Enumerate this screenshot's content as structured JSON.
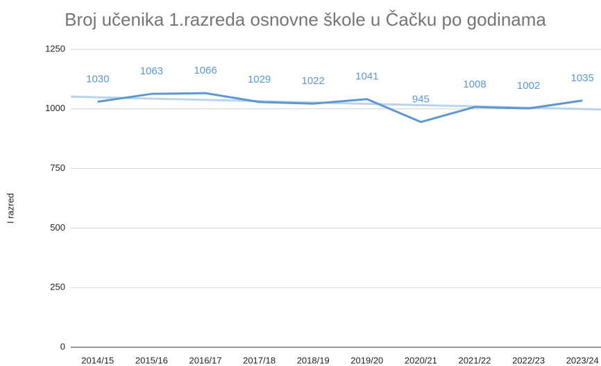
{
  "chart_data": {
    "type": "line",
    "title": "Broj učenika 1.razreda osnovne škole u Čačku po godinama",
    "y_label": "I razred",
    "categories": [
      "2014/15",
      "2015/16",
      "2016/17",
      "2017/18",
      "2018/19",
      "2019/20",
      "2020/21",
      "2021/22",
      "2022/23",
      "2023/24"
    ],
    "values": [
      1030,
      1063,
      1066,
      1029,
      1022,
      1041,
      945,
      1008,
      1002,
      1035
    ],
    "color": "#5e97cf",
    "trendline": true,
    "trendline_color": "#b9d4eb",
    "ylim": [
      0,
      1250
    ],
    "yticks": [
      0,
      250,
      500,
      750,
      1000,
      1250
    ],
    "grid": true
  }
}
